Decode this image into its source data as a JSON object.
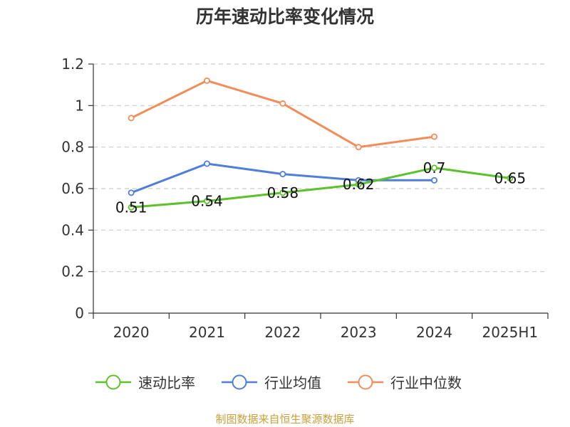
{
  "chart_data": {
    "type": "line",
    "title": "历年速动比率变化情况",
    "categories": [
      "2020",
      "2021",
      "2022",
      "2023",
      "2024",
      "2025H1"
    ],
    "ylim": [
      0,
      1.2
    ],
    "yticks": [
      "0",
      "0.2",
      "0.4",
      "0.6",
      "0.8",
      "1",
      "1.2"
    ],
    "grid": true,
    "legend_position": "bottom",
    "series": [
      {
        "name": "速动比率",
        "color": "#5cc12b",
        "values": [
          0.51,
          0.54,
          0.58,
          0.62,
          0.7,
          0.65
        ],
        "labels": [
          "0.51",
          "0.54",
          "0.58",
          "0.62",
          "0.7",
          "0.65"
        ]
      },
      {
        "name": "行业均值",
        "color": "#4f7fd9",
        "values": [
          0.58,
          0.72,
          0.67,
          0.64,
          0.64,
          null
        ]
      },
      {
        "name": "行业中位数",
        "color": "#f48c5a",
        "values": [
          0.94,
          1.12,
          1.01,
          0.8,
          0.85,
          null
        ]
      }
    ]
  },
  "footer": {
    "source": "制图数据来自恒生聚源数据库"
  }
}
